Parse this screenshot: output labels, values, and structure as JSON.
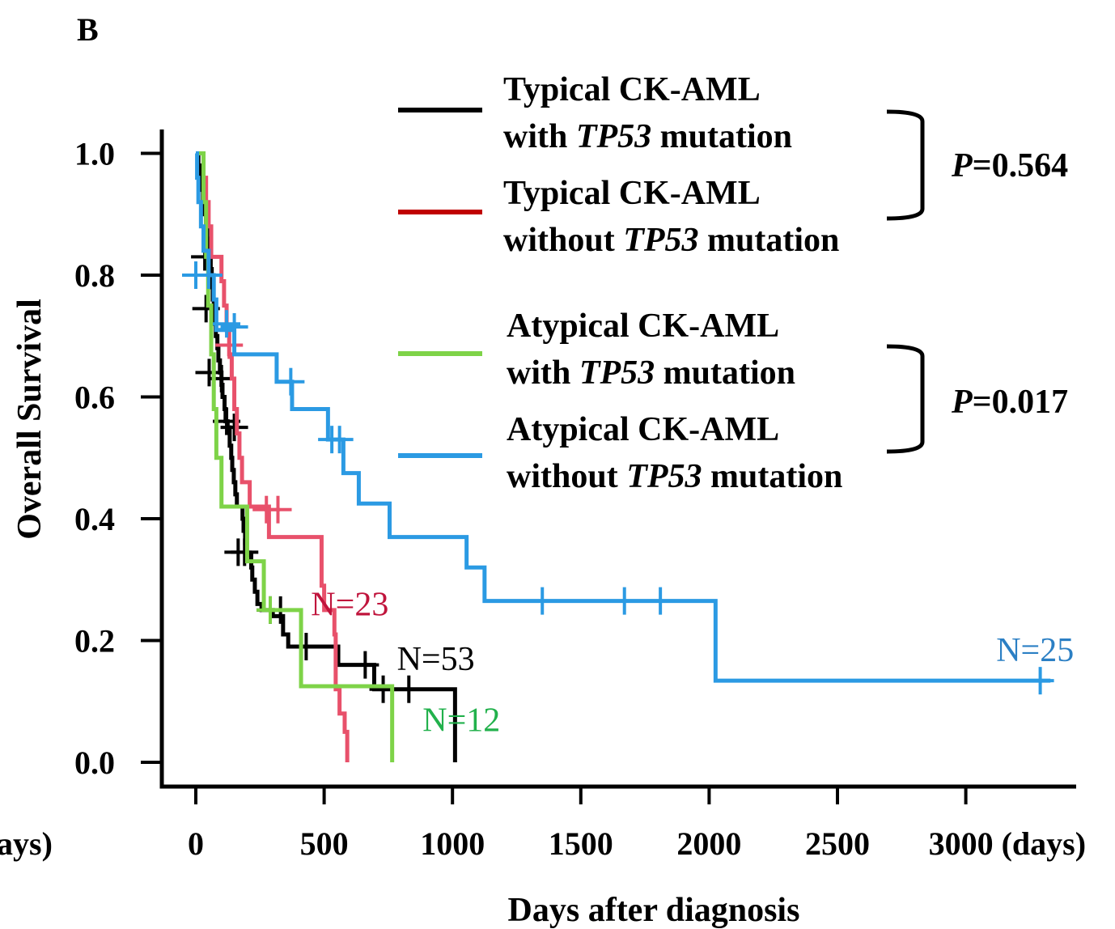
{
  "panel_label": "B",
  "colors": {
    "black": "#000000",
    "red": "#e8516b",
    "red_legend": "#c00000",
    "green": "#7ed348",
    "green_label": "#22b14c",
    "blue": "#2b9ae3",
    "blue_label": "#2b7fc4",
    "red_label": "#c0143c"
  },
  "legend": {
    "group1": {
      "entries": [
        {
          "line1": "Typical CK-AML",
          "line2_pre": "with ",
          "line2_italic": "TP53",
          "line2_post": " mutation",
          "color_key": "black"
        },
        {
          "line1": "Typical CK-AML",
          "line2_pre": "without ",
          "line2_italic": "TP53",
          "line2_post": " mutation",
          "color_key": "red_legend"
        }
      ],
      "p_label": "P",
      "p_value": "=0.564"
    },
    "group2": {
      "entries": [
        {
          "line1": "Atypical CK-AML",
          "line2_pre": "with ",
          "line2_italic": "TP53",
          "line2_post": " mutation",
          "color_key": "green"
        },
        {
          "line1": "Atypical CK-AML",
          "line2_pre": "without ",
          "line2_italic": "TP53",
          "line2_post": " mutation",
          "color_key": "blue"
        }
      ],
      "p_label": "P",
      "p_value": "=0.017"
    }
  },
  "chart_data": {
    "type": "line",
    "subtype": "kaplan-meier",
    "xlabel": "Days after diagnosis",
    "ylabel": "Overall Survival",
    "xlim": [
      -120,
      3420
    ],
    "ylim": [
      -0.04,
      1.04
    ],
    "x_ticks": [
      0,
      500,
      1000,
      1500,
      2000,
      2500,
      3000
    ],
    "x_tick_labels": [
      "0",
      "500",
      "1000",
      "1500",
      "2000",
      "2500",
      "3000 (days)"
    ],
    "left_clipped_label": "ays)",
    "y_ticks": [
      0.0,
      0.2,
      0.4,
      0.6,
      0.8,
      1.0
    ],
    "y_tick_labels": [
      "0.0",
      "0.2",
      "0.4",
      "0.6",
      "0.8",
      "1.0"
    ],
    "series": [
      {
        "name": "Typical CK-AML with TP53 mutation",
        "color_key": "black",
        "n_label": "N=53",
        "n_label_pos": {
          "x": 935,
          "y": 0.17
        },
        "n_label_color_key": "black",
        "steps": [
          [
            0,
            1.0
          ],
          [
            10,
            0.98
          ],
          [
            16,
            0.96
          ],
          [
            22,
            0.94
          ],
          [
            28,
            0.92
          ],
          [
            34,
            0.9
          ],
          [
            40,
            0.88
          ],
          [
            44,
            0.86
          ],
          [
            48,
            0.84
          ],
          [
            52,
            0.83
          ],
          [
            58,
            0.81
          ],
          [
            62,
            0.78
          ],
          [
            66,
            0.76
          ],
          [
            70,
            0.74
          ],
          [
            74,
            0.72
          ],
          [
            78,
            0.7
          ],
          [
            84,
            0.68
          ],
          [
            88,
            0.66
          ],
          [
            94,
            0.64
          ],
          [
            100,
            0.62
          ],
          [
            104,
            0.6
          ],
          [
            112,
            0.58
          ],
          [
            116,
            0.56
          ],
          [
            124,
            0.55
          ],
          [
            132,
            0.52
          ],
          [
            138,
            0.5
          ],
          [
            142,
            0.48
          ],
          [
            148,
            0.46
          ],
          [
            154,
            0.44
          ],
          [
            160,
            0.42
          ],
          [
            176,
            0.42
          ],
          [
            182,
            0.4
          ],
          [
            186,
            0.38
          ],
          [
            192,
            0.36
          ],
          [
            196,
            0.34
          ],
          [
            210,
            0.34
          ],
          [
            216,
            0.32
          ],
          [
            220,
            0.3
          ],
          [
            230,
            0.28
          ],
          [
            240,
            0.26
          ],
          [
            256,
            0.25
          ],
          [
            300,
            0.24
          ],
          [
            340,
            0.21
          ],
          [
            360,
            0.19
          ],
          [
            550,
            0.19
          ],
          [
            555,
            0.16
          ],
          [
            690,
            0.16
          ],
          [
            695,
            0.12
          ],
          [
            1010,
            0.12
          ],
          [
            1010,
            0.0
          ]
        ],
        "censors": [
          [
            35,
            0.83
          ],
          [
            40,
            0.745
          ],
          [
            52,
            0.64
          ],
          [
            100,
            0.63
          ],
          [
            120,
            0.56
          ],
          [
            150,
            0.55
          ],
          [
            165,
            0.345
          ],
          [
            190,
            0.345
          ],
          [
            290,
            0.25
          ],
          [
            330,
            0.25
          ],
          [
            430,
            0.19
          ],
          [
            660,
            0.16
          ],
          [
            730,
            0.12
          ],
          [
            830,
            0.12
          ]
        ]
      },
      {
        "name": "Typical CK-AML without TP53 mutation",
        "color_key": "red",
        "n_label": "N=23",
        "n_label_pos": {
          "x": 600,
          "y": 0.26
        },
        "n_label_color_key": "red_label",
        "steps": [
          [
            0,
            1.0
          ],
          [
            30,
            0.96
          ],
          [
            40,
            0.92
          ],
          [
            50,
            0.88
          ],
          [
            60,
            0.83
          ],
          [
            90,
            0.83
          ],
          [
            100,
            0.79
          ],
          [
            110,
            0.75
          ],
          [
            120,
            0.71
          ],
          [
            130,
            0.67
          ],
          [
            140,
            0.63
          ],
          [
            150,
            0.58
          ],
          [
            160,
            0.54
          ],
          [
            170,
            0.5
          ],
          [
            180,
            0.46
          ],
          [
            200,
            0.46
          ],
          [
            210,
            0.42
          ],
          [
            270,
            0.42
          ],
          [
            285,
            0.37
          ],
          [
            480,
            0.37
          ],
          [
            490,
            0.29
          ],
          [
            500,
            0.25
          ],
          [
            540,
            0.21
          ],
          [
            545,
            0.12
          ],
          [
            560,
            0.08
          ],
          [
            580,
            0.05
          ],
          [
            590,
            0.0
          ]
        ],
        "censors": [
          [
            130,
            0.685
          ],
          [
            275,
            0.415
          ],
          [
            320,
            0.415
          ]
        ]
      },
      {
        "name": "Atypical CK-AML with TP53 mutation",
        "color_key": "green",
        "n_label": "N=12",
        "n_label_pos": {
          "x": 1035,
          "y": 0.07
        },
        "n_label_color_key": "green_label",
        "steps": [
          [
            0,
            1.0
          ],
          [
            30,
            0.92
          ],
          [
            40,
            0.83
          ],
          [
            48,
            0.75
          ],
          [
            60,
            0.67
          ],
          [
            70,
            0.58
          ],
          [
            80,
            0.5
          ],
          [
            100,
            0.42
          ],
          [
            195,
            0.42
          ],
          [
            200,
            0.33
          ],
          [
            255,
            0.33
          ],
          [
            265,
            0.25
          ],
          [
            405,
            0.25
          ],
          [
            410,
            0.125
          ],
          [
            765,
            0.125
          ],
          [
            765,
            0.0
          ]
        ],
        "censors": [
          [
            290,
            0.25
          ]
        ]
      },
      {
        "name": "Atypical CK-AML without TP53 mutation",
        "color_key": "blue",
        "n_label": "N=25",
        "n_label_pos": {
          "x": 3270,
          "y": 0.185
        },
        "n_label_color_key": "blue_label",
        "steps": [
          [
            0,
            1.0
          ],
          [
            5,
            0.96
          ],
          [
            10,
            0.92
          ],
          [
            20,
            0.88
          ],
          [
            30,
            0.84
          ],
          [
            50,
            0.8
          ],
          [
            70,
            0.76
          ],
          [
            80,
            0.71
          ],
          [
            145,
            0.71
          ],
          [
            150,
            0.67
          ],
          [
            310,
            0.67
          ],
          [
            315,
            0.625
          ],
          [
            370,
            0.625
          ],
          [
            375,
            0.58
          ],
          [
            510,
            0.58
          ],
          [
            515,
            0.53
          ],
          [
            570,
            0.53
          ],
          [
            575,
            0.475
          ],
          [
            630,
            0.475
          ],
          [
            635,
            0.425
          ],
          [
            750,
            0.425
          ],
          [
            755,
            0.37
          ],
          [
            1050,
            0.37
          ],
          [
            1055,
            0.32
          ],
          [
            1120,
            0.32
          ],
          [
            1125,
            0.265
          ],
          [
            2020,
            0.265
          ],
          [
            2025,
            0.134
          ],
          [
            3330,
            0.134
          ]
        ],
        "censors": [
          [
            0,
            0.8
          ],
          [
            50,
            0.8
          ],
          [
            120,
            0.72
          ],
          [
            150,
            0.715
          ],
          [
            370,
            0.625
          ],
          [
            530,
            0.53
          ],
          [
            560,
            0.53
          ],
          [
            1350,
            0.265
          ],
          [
            1670,
            0.265
          ],
          [
            1810,
            0.265
          ],
          [
            3290,
            0.134
          ]
        ]
      }
    ]
  }
}
